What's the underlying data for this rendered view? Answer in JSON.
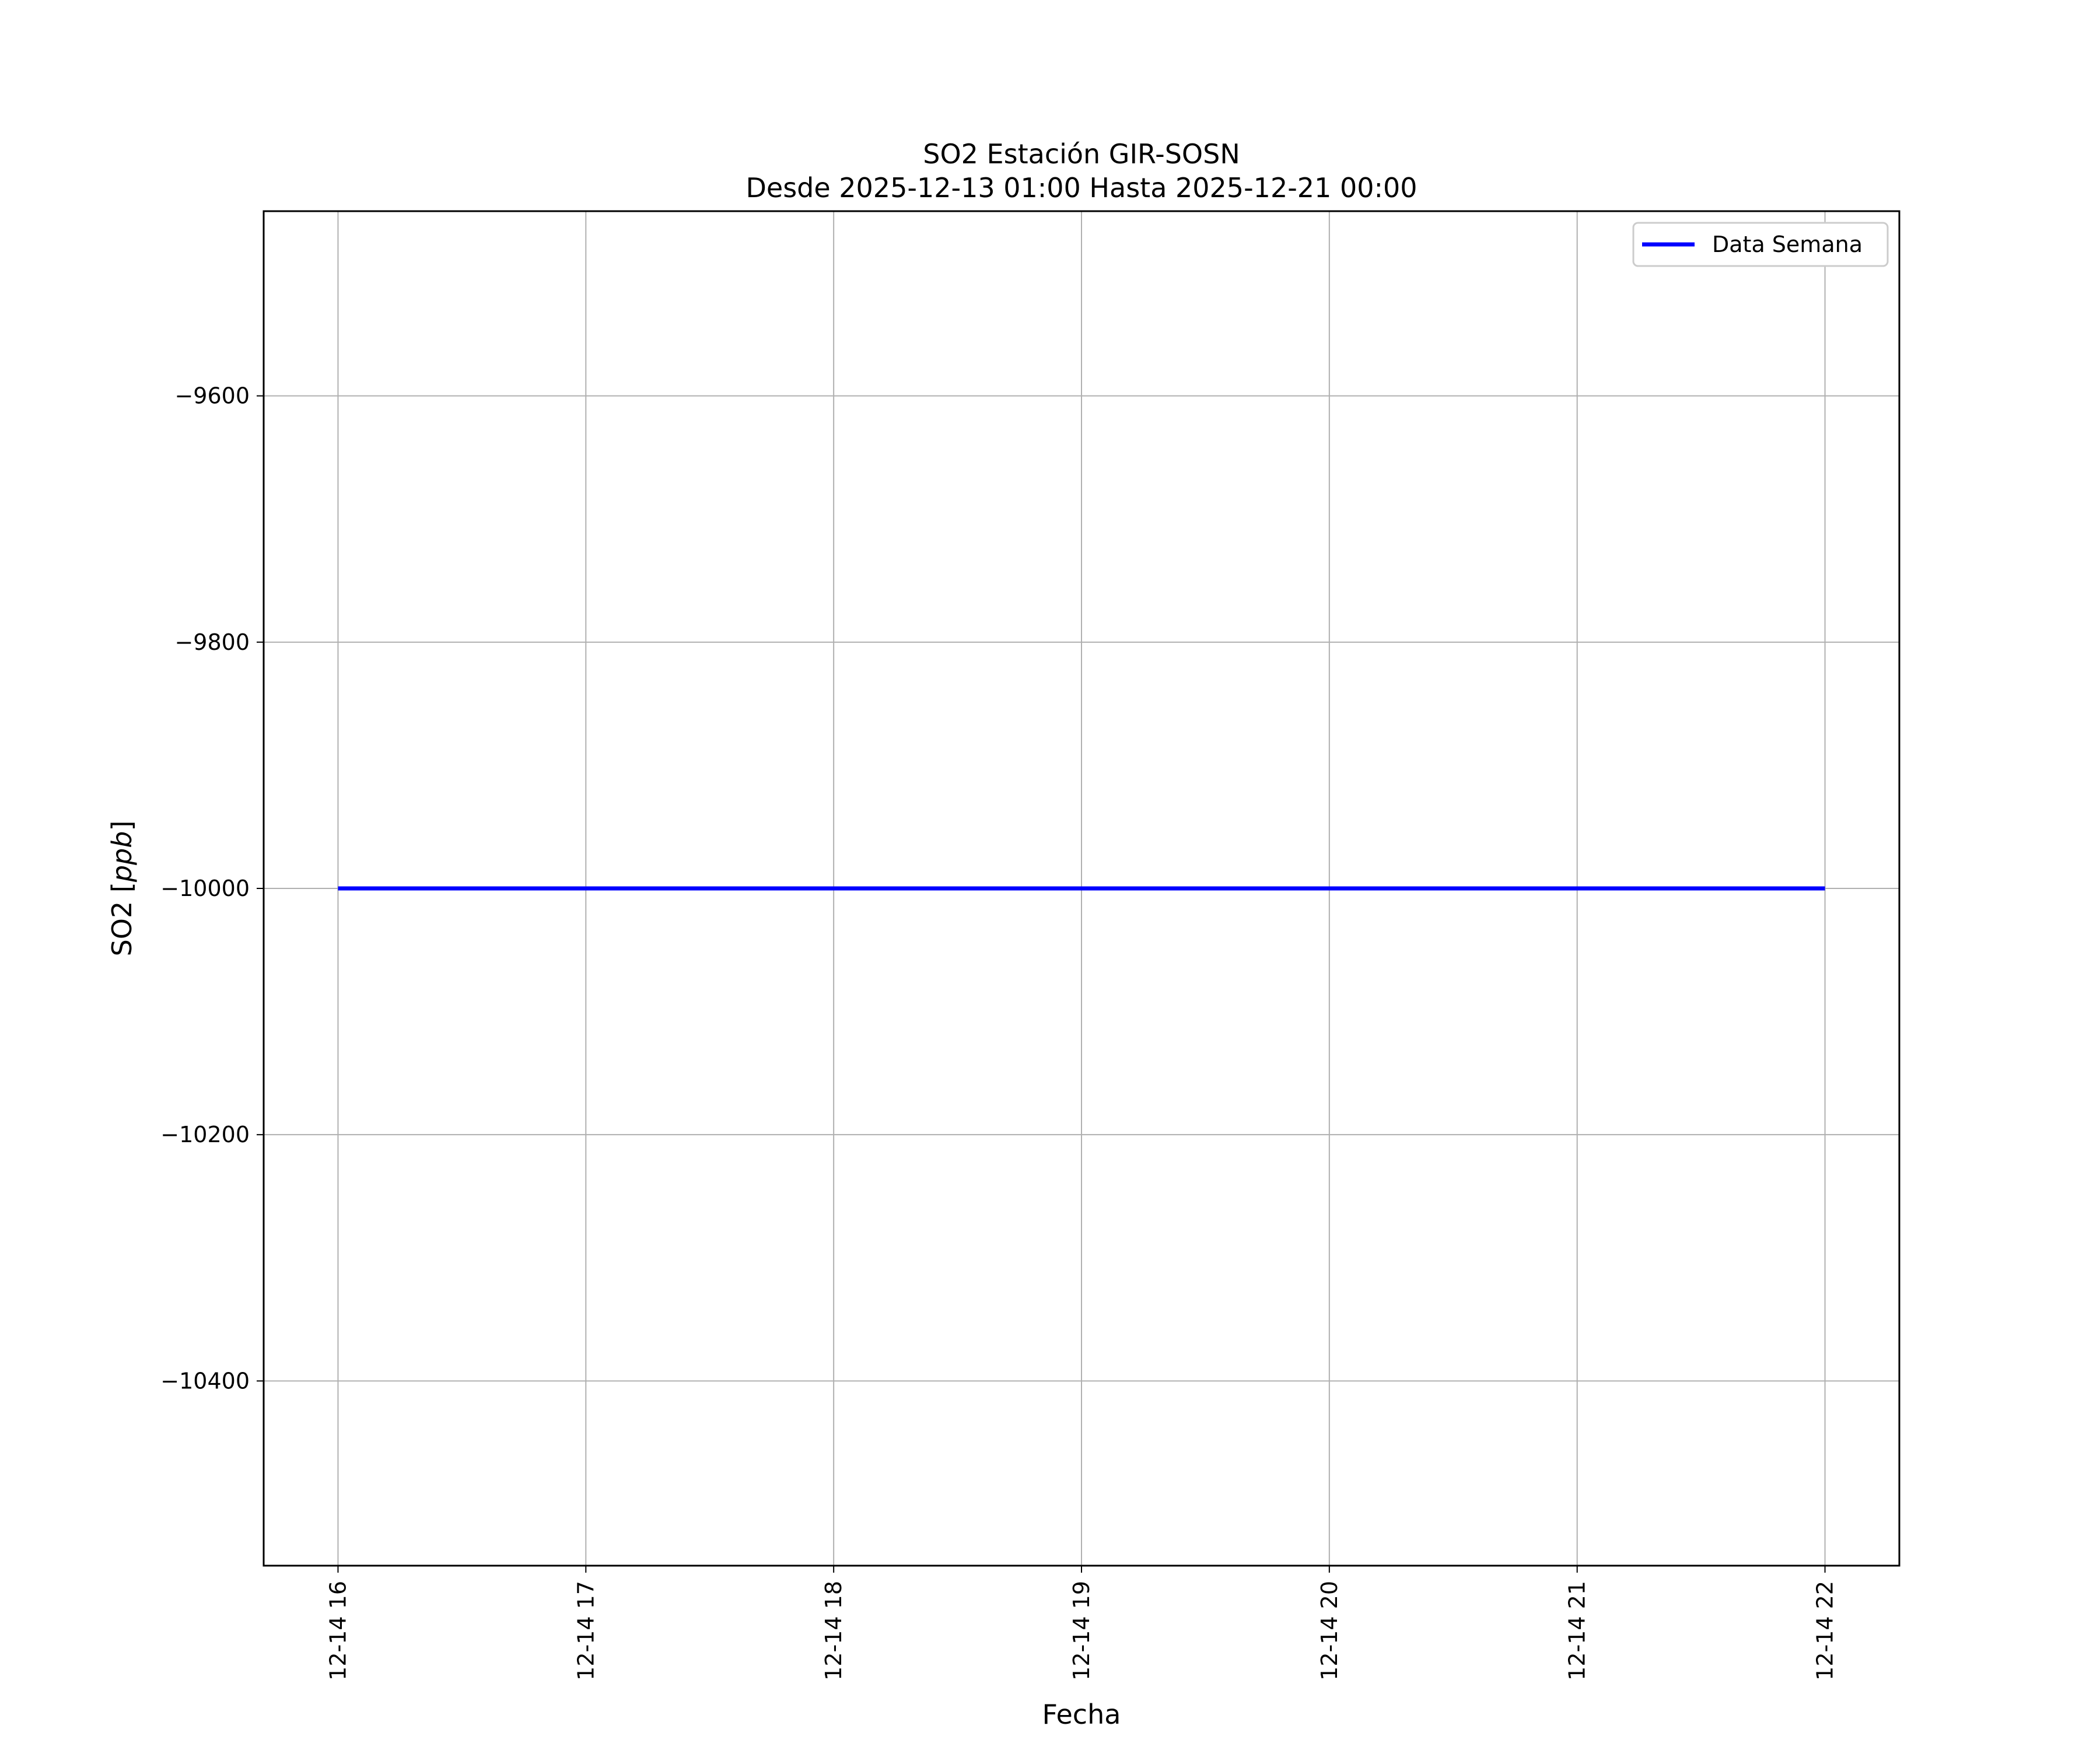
{
  "chart_data": {
    "type": "line",
    "title": "SO2 Estación GIR-SOSN",
    "subtitle": "Desde 2025-12-13 01:00 Hasta 2025-12-21 00:00",
    "xlabel": "Fecha",
    "ylabel": "SO2 [ppb]",
    "ylabel_plain": "SO2 [",
    "ylabel_unit": "ppb",
    "ylabel_close": "]",
    "x_hours": [
      16,
      17,
      18,
      19,
      20,
      21,
      22
    ],
    "xtick_labels": [
      "12-14 16",
      "12-14 17",
      "12-14 18",
      "12-14 19",
      "12-14 20",
      "12-14 21",
      "12-14 22"
    ],
    "xlim_hours": [
      15.7,
      22.3
    ],
    "yticks": [
      -9600,
      -9800,
      -10000,
      -10200,
      -10400
    ],
    "ytick_labels": [
      "−9600",
      "−9800",
      "−10000",
      "−10200",
      "−10400"
    ],
    "ylim": [
      -10550,
      -9450
    ],
    "grid": true,
    "legend_position": "top-right",
    "series": [
      {
        "name": "Data Semana",
        "color": "#0000ff",
        "x_hours": [
          16,
          22
        ],
        "values": [
          -10000,
          -10000
        ]
      }
    ]
  }
}
